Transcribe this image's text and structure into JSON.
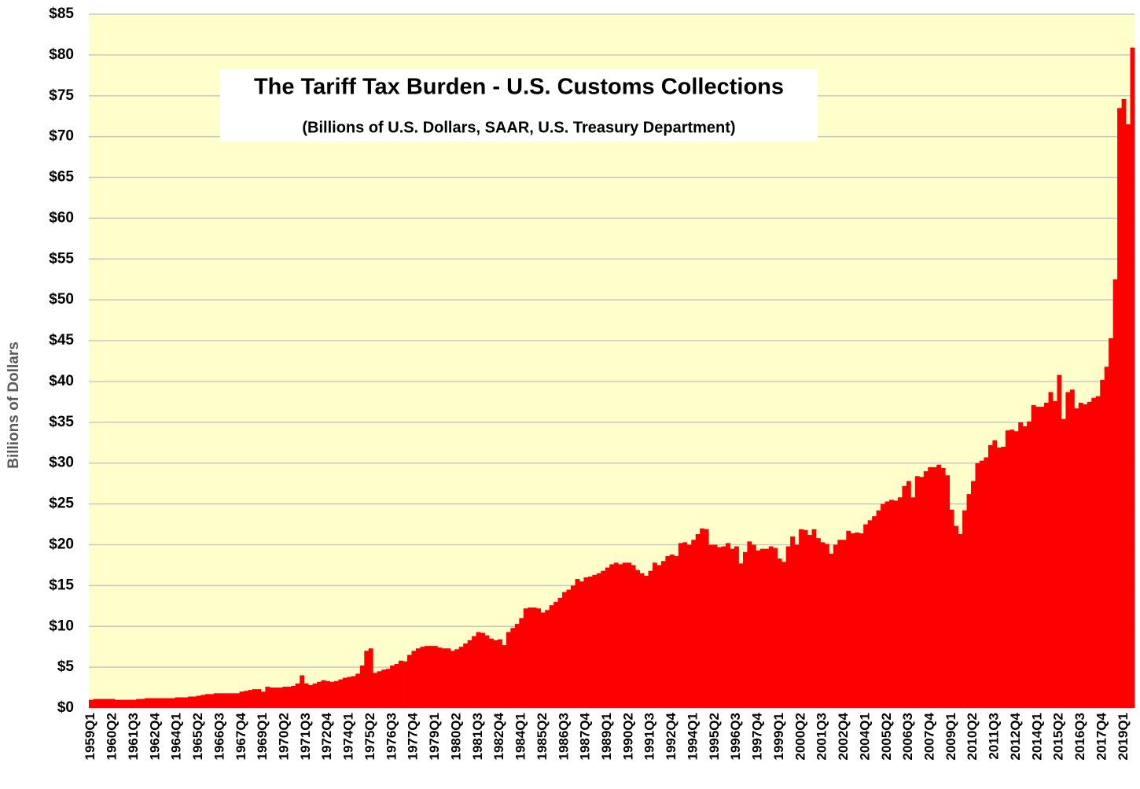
{
  "chart_data": {
    "type": "bar",
    "title": "The Tariff Tax Burden - U.S. Customs Collections",
    "subtitle": "(Billions of U.S. Dollars, SAAR, U.S. Treasury Department)",
    "y_axis_label": "Billions of Dollars",
    "color": "#ff0000",
    "grid": true,
    "ylim": [
      0,
      85
    ],
    "yticks": [
      {
        "value": 0,
        "label": "$0"
      },
      {
        "value": 5,
        "label": "$5"
      },
      {
        "value": 10,
        "label": "$10"
      },
      {
        "value": 15,
        "label": "$15"
      },
      {
        "value": 20,
        "label": "$20"
      },
      {
        "value": 25,
        "label": "$25"
      },
      {
        "value": 30,
        "label": "$30"
      },
      {
        "value": 35,
        "label": "$35"
      },
      {
        "value": 40,
        "label": "$40"
      },
      {
        "value": 45,
        "label": "$45"
      },
      {
        "value": 50,
        "label": "$50"
      },
      {
        "value": 55,
        "label": "$55"
      },
      {
        "value": 60,
        "label": "$60"
      },
      {
        "value": 65,
        "label": "$65"
      },
      {
        "value": 70,
        "label": "$70"
      },
      {
        "value": 75,
        "label": "$75"
      },
      {
        "value": 80,
        "label": "$80"
      },
      {
        "value": 85,
        "label": "$85"
      }
    ],
    "categories": [
      "1959Q1",
      null,
      null,
      null,
      null,
      "1960Q2",
      null,
      null,
      null,
      null,
      "1961Q3",
      null,
      null,
      null,
      null,
      "1962Q4",
      null,
      null,
      null,
      null,
      "1964Q1",
      null,
      null,
      null,
      null,
      "1965Q2",
      null,
      null,
      null,
      null,
      "1966Q3",
      null,
      null,
      null,
      null,
      "1967Q4",
      null,
      null,
      null,
      null,
      "1969Q1",
      null,
      null,
      null,
      null,
      "1970Q2",
      null,
      null,
      null,
      null,
      "1971Q3",
      null,
      null,
      null,
      null,
      "1972Q4",
      null,
      null,
      null,
      null,
      "1974Q1",
      null,
      null,
      null,
      null,
      "1975Q2",
      null,
      null,
      null,
      null,
      "1976Q3",
      null,
      null,
      null,
      null,
      "1977Q4",
      null,
      null,
      null,
      null,
      "1979Q1",
      null,
      null,
      null,
      null,
      "1980Q2",
      null,
      null,
      null,
      null,
      "1981Q3",
      null,
      null,
      null,
      null,
      "1982Q4",
      null,
      null,
      null,
      null,
      "1984Q1",
      null,
      null,
      null,
      null,
      "1985Q2",
      null,
      null,
      null,
      null,
      "1986Q3",
      null,
      null,
      null,
      null,
      "1987Q4",
      null,
      null,
      null,
      null,
      "1989Q1",
      null,
      null,
      null,
      null,
      "1990Q2",
      null,
      null,
      null,
      null,
      "1991Q3",
      null,
      null,
      null,
      null,
      "1992Q4",
      null,
      null,
      null,
      null,
      "1994Q1",
      null,
      null,
      null,
      null,
      "1995Q2",
      null,
      null,
      null,
      null,
      "1996Q3",
      null,
      null,
      null,
      null,
      "1997Q4",
      null,
      null,
      null,
      null,
      "1999Q1",
      null,
      null,
      null,
      null,
      "2000Q2",
      null,
      null,
      null,
      null,
      "2001Q3",
      null,
      null,
      null,
      null,
      "2002Q4",
      null,
      null,
      null,
      null,
      "2004Q1",
      null,
      null,
      null,
      null,
      "2005Q2",
      null,
      null,
      null,
      null,
      "2006Q3",
      null,
      null,
      null,
      null,
      "2007Q4",
      null,
      null,
      null,
      null,
      "2009Q1",
      null,
      null,
      null,
      null,
      "2010Q2",
      null,
      null,
      null,
      null,
      "2011Q3",
      null,
      null,
      null,
      null,
      "2012Q4",
      null,
      null,
      null,
      null,
      "2014Q1",
      null,
      null,
      null,
      null,
      "2015Q2",
      null,
      null,
      null,
      null,
      "2016Q3",
      null,
      null,
      null,
      null,
      "2017Q4",
      null,
      null,
      null,
      null,
      "2019Q1",
      null,
      null
    ],
    "values": [
      1.0,
      1.1,
      1.1,
      1.1,
      1.1,
      1.1,
      1.0,
      1.0,
      1.0,
      1.0,
      1.0,
      1.1,
      1.1,
      1.2,
      1.2,
      1.2,
      1.2,
      1.2,
      1.2,
      1.2,
      1.3,
      1.3,
      1.3,
      1.4,
      1.4,
      1.5,
      1.6,
      1.7,
      1.7,
      1.8,
      1.8,
      1.8,
      1.8,
      1.8,
      1.8,
      2.0,
      2.1,
      2.2,
      2.3,
      2.3,
      2.0,
      2.6,
      2.5,
      2.5,
      2.5,
      2.6,
      2.6,
      2.7,
      3.0,
      4.0,
      3.0,
      2.8,
      3.0,
      3.2,
      3.4,
      3.3,
      3.2,
      3.3,
      3.5,
      3.7,
      3.8,
      3.9,
      4.2,
      5.2,
      7.0,
      7.3,
      4.3,
      4.5,
      4.7,
      4.8,
      5.2,
      5.4,
      5.8,
      5.7,
      6.5,
      7.0,
      7.3,
      7.5,
      7.6,
      7.6,
      7.6,
      7.4,
      7.3,
      7.3,
      7.0,
      7.2,
      7.5,
      7.9,
      8.3,
      8.8,
      9.3,
      9.2,
      8.9,
      8.5,
      8.3,
      8.4,
      7.7,
      9.3,
      9.8,
      10.3,
      11.0,
      12.2,
      12.3,
      12.3,
      12.2,
      11.7,
      12.0,
      12.6,
      13.0,
      13.5,
      14.2,
      14.5,
      15.0,
      15.8,
      15.5,
      16.0,
      16.1,
      16.3,
      16.5,
      16.8,
      17.2,
      17.6,
      17.8,
      17.6,
      17.8,
      17.8,
      17.5,
      16.9,
      16.5,
      16.2,
      16.8,
      17.8,
      17.5,
      18.0,
      18.6,
      18.8,
      18.6,
      20.2,
      20.3,
      20.0,
      20.6,
      21.3,
      22.0,
      21.9,
      20.0,
      20.0,
      19.7,
      19.8,
      20.2,
      19.5,
      19.8,
      17.7,
      19.1,
      20.4,
      20.0,
      19.3,
      19.5,
      19.5,
      19.8,
      19.6,
      18.3,
      17.9,
      19.8,
      21.0,
      20.0,
      21.9,
      21.8,
      21.2,
      21.9,
      20.8,
      20.3,
      20.1,
      18.9,
      20.0,
      20.6,
      20.6,
      21.7,
      21.4,
      21.5,
      21.4,
      22.5,
      23.0,
      23.5,
      24.2,
      25.0,
      25.3,
      25.5,
      25.4,
      25.8,
      27.2,
      27.8,
      25.8,
      28.4,
      28.3,
      29.0,
      29.5,
      29.5,
      29.8,
      29.4,
      28.5,
      24.3,
      22.3,
      21.3,
      24.2,
      26.2,
      27.8,
      30.0,
      30.3,
      30.7,
      32.2,
      32.8,
      31.9,
      32.0,
      34.0,
      34.1,
      33.9,
      35.0,
      34.5,
      35.1,
      37.1,
      36.9,
      36.9,
      37.4,
      38.7,
      37.6,
      40.8,
      35.4,
      38.7,
      39.0,
      36.7,
      37.4,
      37.2,
      37.5,
      38.0,
      38.2,
      40.2,
      41.8,
      45.3,
      52.5,
      73.5,
      74.6,
      71.5,
      80.9
    ]
  }
}
